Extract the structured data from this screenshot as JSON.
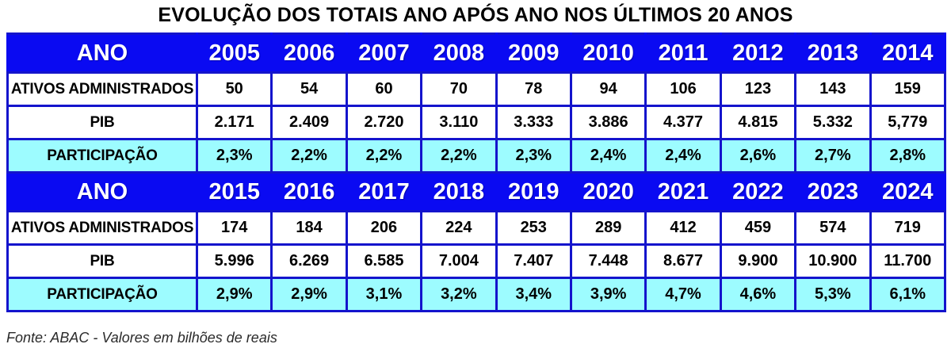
{
  "title": "EVOLUÇÃO DOS TOTAIS ANO APÓS ANO NOS ÚLTIMOS 20 ANOS",
  "footer": "Fonte: ABAC - Valores em bilhões de reais",
  "colors": {
    "header_bg": "#0a0af2",
    "header_text": "#ffffff",
    "cell_border": "#1414cc",
    "highlight_bg": "#9dfcff",
    "text": "#000000"
  },
  "chart_data": {
    "type": "table",
    "title": "EVOLUÇÃO DOS TOTAIS ANO APÓS ANO NOS ÚLTIMOS 20 ANOS",
    "source": "Fonte: ABAC - Valores em bilhões de reais",
    "sections": [
      {
        "header_label": "ANO",
        "years": [
          "2005",
          "2006",
          "2007",
          "2008",
          "2009",
          "2010",
          "2011",
          "2012",
          "2013",
          "2014"
        ],
        "rows": [
          {
            "label": "ATIVOS ADMINISTRADOS",
            "highlight": false,
            "values": [
              "50",
              "54",
              "60",
              "70",
              "78",
              "94",
              "106",
              "123",
              "143",
              "159"
            ]
          },
          {
            "label": "PIB",
            "highlight": false,
            "values": [
              "2.171",
              "2.409",
              "2.720",
              "3.110",
              "3.333",
              "3.886",
              "4.377",
              "4.815",
              "5.332",
              "5,779"
            ]
          },
          {
            "label": "PARTICIPAÇÃO",
            "highlight": true,
            "values": [
              "2,3%",
              "2,2%",
              "2,2%",
              "2,2%",
              "2,3%",
              "2,4%",
              "2,4%",
              "2,6%",
              "2,7%",
              "2,8%"
            ]
          }
        ]
      },
      {
        "header_label": "ANO",
        "years": [
          "2015",
          "2016",
          "2017",
          "2018",
          "2019",
          "2020",
          "2021",
          "2022",
          "2023",
          "2024"
        ],
        "rows": [
          {
            "label": "ATIVOS ADMINISTRADOS",
            "highlight": false,
            "values": [
              "174",
              "184",
              "206",
              "224",
              "253",
              "289",
              "412",
              "459",
              "574",
              "719"
            ]
          },
          {
            "label": "PIB",
            "highlight": false,
            "values": [
              "5.996",
              "6.269",
              "6.585",
              "7.004",
              "7.407",
              "7.448",
              "8.677",
              "9.900",
              "10.900",
              "11.700"
            ]
          },
          {
            "label": "PARTICIPAÇÃO",
            "highlight": true,
            "values": [
              "2,9%",
              "2,9%",
              "3,1%",
              "3,2%",
              "3,4%",
              "3,9%",
              "4,7%",
              "4,6%",
              "5,3%",
              "6,1%"
            ]
          }
        ]
      }
    ]
  }
}
